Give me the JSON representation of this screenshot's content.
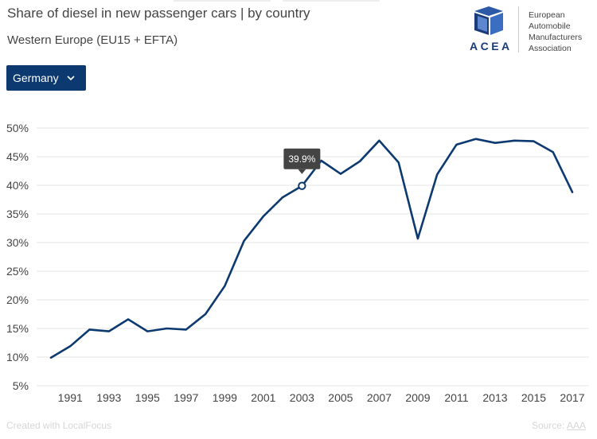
{
  "header": {
    "title": "Share of diesel in new passenger cars | by country",
    "subtitle": "Western Europe (EU15 + EFTA)"
  },
  "selector": {
    "selected": "Germany",
    "chevron_icon": "chevron-down-icon"
  },
  "logo": {
    "acronym": "ACEA",
    "line1": "European",
    "line2": "Automobile",
    "line3": "Manufacturers",
    "line4": "Association",
    "color": "#1a3a78"
  },
  "footer": {
    "credit": "Created with LocalFocus",
    "source_label": "Source:",
    "source_name": "AAA"
  },
  "tooltip": {
    "label": "39.9%",
    "year": 2003
  },
  "chart_data": {
    "type": "line",
    "title": "Share of diesel in new passenger cars | by country",
    "subtitle": "Western Europe (EU15 + EFTA)",
    "xlabel": "",
    "ylabel": "",
    "x": [
      1990,
      1991,
      1992,
      1993,
      1994,
      1995,
      1996,
      1997,
      1998,
      1999,
      2000,
      2001,
      2002,
      2003,
      2004,
      2005,
      2006,
      2007,
      2008,
      2009,
      2010,
      2011,
      2012,
      2013,
      2014,
      2015,
      2016,
      2017
    ],
    "series": [
      {
        "name": "Germany",
        "color": "#0c3a70",
        "values": [
          9.9,
          11.9,
          14.8,
          14.5,
          16.6,
          14.5,
          15.0,
          14.8,
          17.5,
          22.4,
          30.3,
          34.6,
          37.9,
          39.9,
          44.3,
          42.0,
          44.2,
          47.8,
          44.0,
          30.7,
          41.9,
          47.1,
          48.1,
          47.4,
          47.8,
          47.7,
          45.8,
          38.8
        ]
      }
    ],
    "xticks": [
      "1991",
      "1993",
      "1995",
      "1997",
      "1999",
      "2001",
      "2003",
      "2005",
      "2007",
      "2009",
      "2011",
      "2013",
      "2015",
      "2017"
    ],
    "yticks": [
      "5%",
      "10%",
      "15%",
      "20%",
      "25%",
      "30%",
      "35%",
      "40%",
      "45%",
      "50%"
    ],
    "ytick_values": [
      5,
      10,
      15,
      20,
      25,
      30,
      35,
      40,
      45,
      50
    ],
    "xtick_values": [
      1991,
      1993,
      1995,
      1997,
      1999,
      2001,
      2003,
      2005,
      2007,
      2009,
      2011,
      2013,
      2015,
      2017
    ],
    "ylim": [
      5,
      50
    ],
    "xlim": [
      1990,
      2017
    ],
    "grid": true,
    "gridline_color": "#e6e6e6"
  }
}
